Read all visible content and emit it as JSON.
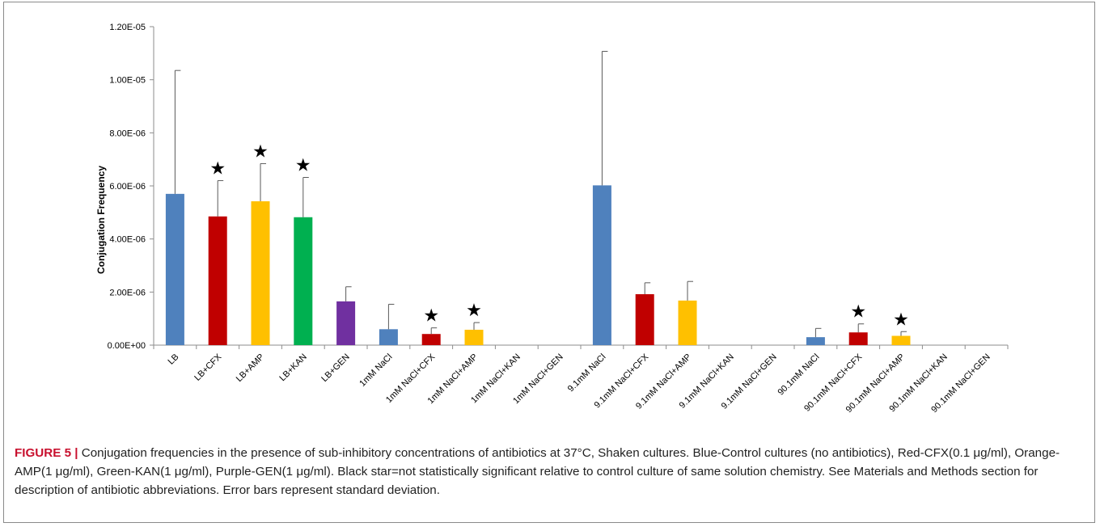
{
  "chart_data": {
    "type": "bar",
    "title": "",
    "xlabel": "",
    "ylabel": "Conjugation Frequency",
    "ylim": [
      0,
      1.2e-05
    ],
    "yticks": [
      {
        "value": 0,
        "label": "0.00E+00"
      },
      {
        "value": 2e-06,
        "label": "2.00E-06"
      },
      {
        "value": 4e-06,
        "label": "4.00E-06"
      },
      {
        "value": 6e-06,
        "label": "6.00E-06"
      },
      {
        "value": 8e-06,
        "label": "8.00E-06"
      },
      {
        "value": 1e-05,
        "label": "1.00E-05"
      },
      {
        "value": 1.2e-05,
        "label": "1.20E-05"
      }
    ],
    "grid": false,
    "legend": "none",
    "star_symbol": "★",
    "categories": [
      "LB",
      "LB+CFX",
      "LB+AMP",
      "LB+KAN",
      "LB+GEN",
      "1mM NaCl",
      "1mM NaCl+CFX",
      "1mM NaCl+AMP",
      "1mM NaCl+KAN",
      "1mM NaCl+GEN",
      "9.1mM NaCl",
      "9.1mM NaCl+CFX",
      "9.1mM NaCl+AMP",
      "9.1mM NaCl+KAN",
      "9.1mM NaCl+GEN",
      "90.1mM NaCl",
      "90.1mM NaCl+CFX",
      "90.1mM NaCl+AMP",
      "90.1mM NaCl+KAN",
      "90.1mM NaCl+GEN"
    ],
    "values": [
      5.7e-06,
      4.85e-06,
      5.42e-06,
      4.82e-06,
      1.65e-06,
      6e-07,
      4.2e-07,
      5.8e-07,
      0,
      0,
      6.02e-06,
      1.92e-06,
      1.68e-06,
      0,
      0,
      3e-07,
      4.8e-07,
      3.5e-07,
      0,
      0
    ],
    "errors": [
      4.65e-06,
      1.35e-06,
      1.42e-06,
      1.5e-06,
      5.5e-07,
      9.4e-07,
      2.3e-07,
      2.7e-07,
      0,
      0,
      5.05e-06,
      4.3e-07,
      7.2e-07,
      0,
      0,
      3.3e-07,
      3.2e-07,
      1.6e-07,
      0,
      0
    ],
    "colors": [
      "#4f81bd",
      "#c00000",
      "#ffc000",
      "#00b050",
      "#7030a0",
      "#4f81bd",
      "#c00000",
      "#ffc000",
      "#00b050",
      "#7030a0",
      "#4f81bd",
      "#c00000",
      "#ffc000",
      "#00b050",
      "#7030a0",
      "#4f81bd",
      "#c00000",
      "#ffc000",
      "#00b050",
      "#7030a0"
    ],
    "stars": [
      false,
      true,
      true,
      true,
      false,
      false,
      true,
      true,
      false,
      false,
      false,
      false,
      false,
      false,
      false,
      false,
      true,
      true,
      false,
      false
    ]
  },
  "caption": {
    "lead": "FIGURE 5 |",
    "text": " Conjugation frequencies in the presence of sub-inhibitory concentrations of antibiotics at 37°C, Shaken cultures. Blue-Control cultures (no antibiotics), Red-CFX(0.1 μg/ml), Orange-AMP(1 μg/ml), Green-KAN(1 μg/ml), Purple-GEN(1 μg/ml). Black star=not statistically significant relative to control culture of same solution chemistry. See Materials and Methods section for description of antibiotic abbreviations. Error bars represent standard deviation."
  }
}
